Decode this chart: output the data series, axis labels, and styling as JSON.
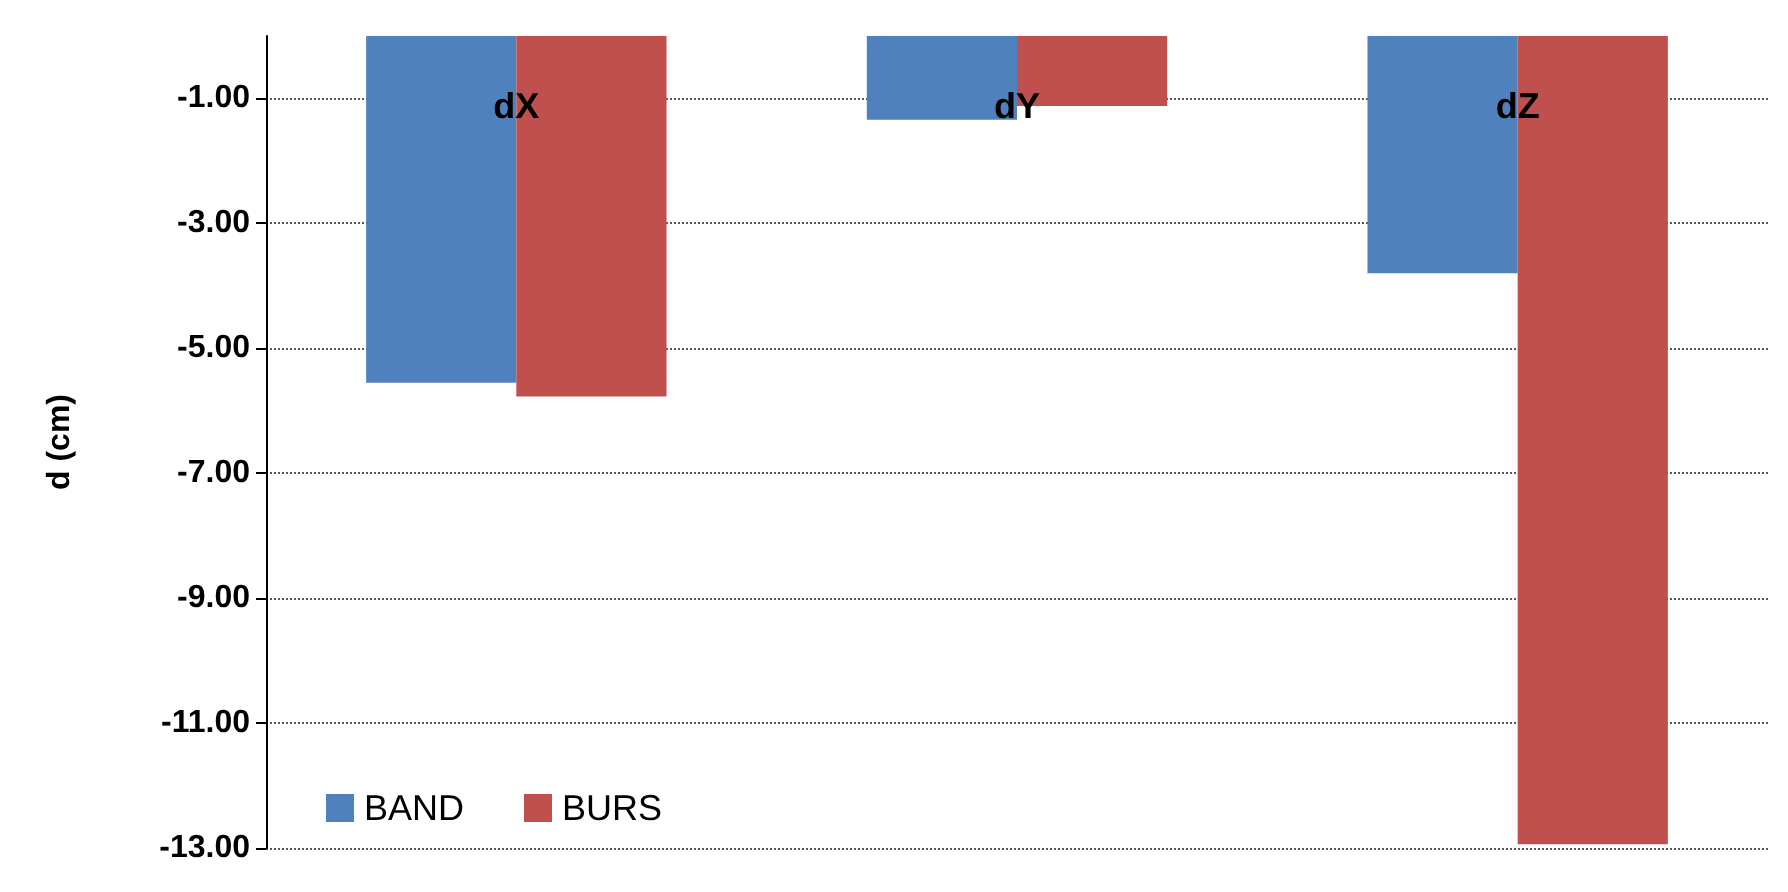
{
  "chart_data": {
    "type": "bar",
    "ylabel": "d (cm)",
    "categories": [
      "dX",
      "dY",
      "dZ"
    ],
    "series": [
      {
        "name": "BAND",
        "color": "#4f81bd",
        "values": [
          -5.55,
          -1.34,
          -3.8
        ]
      },
      {
        "name": "BURS",
        "color": "#c0504d",
        "values": [
          -5.77,
          -1.12,
          -12.94
        ]
      }
    ],
    "ylim": [
      -13,
      0
    ],
    "yticks": [
      {
        "value": -13,
        "label": "-13.00"
      },
      {
        "value": -11,
        "label": "-11.00"
      },
      {
        "value": -9,
        "label": "-9.00"
      },
      {
        "value": -7,
        "label": "-7.00"
      },
      {
        "value": -5,
        "label": "-5.00"
      },
      {
        "value": -3,
        "label": "-3.00"
      },
      {
        "value": -1,
        "label": "-1.00"
      }
    ],
    "grid": "y",
    "legend": "bottom left"
  }
}
